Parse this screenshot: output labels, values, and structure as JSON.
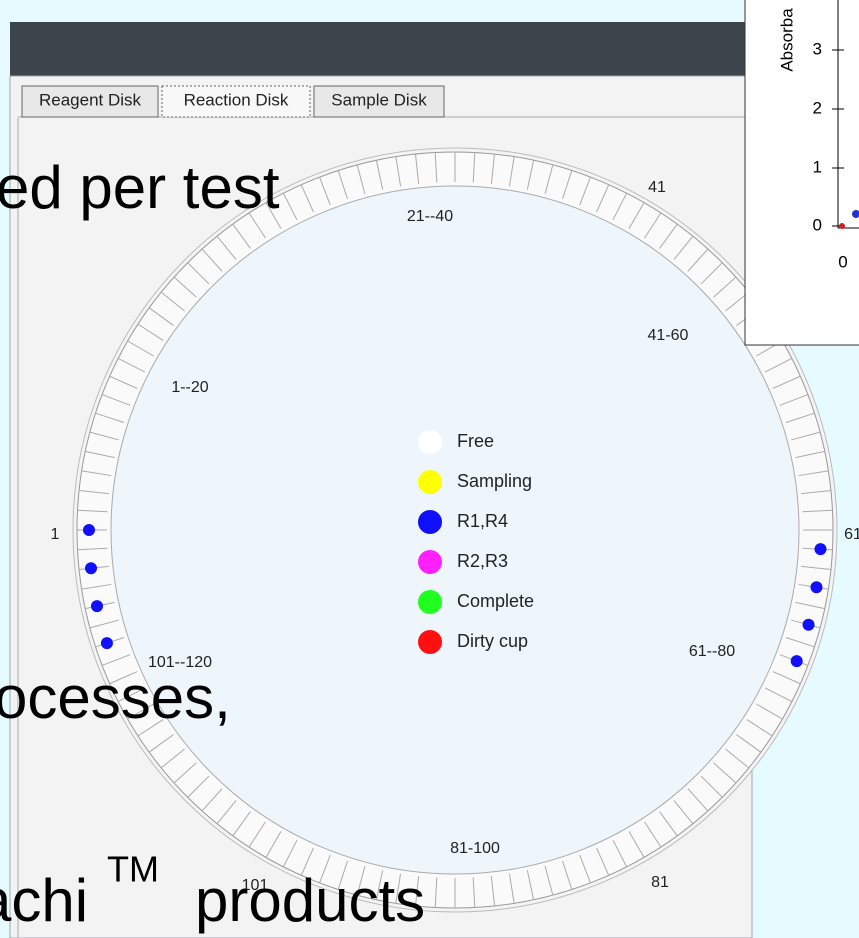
{
  "tabs": [
    "Reagent Disk",
    "Reaction Disk",
    "Sample Disk"
  ],
  "disk_labels": [
    "21--40",
    "41",
    "41-60",
    "1--20",
    "1",
    "61",
    "101--120",
    "61--80",
    "81-100",
    "81",
    "101"
  ],
  "legend": [
    {
      "name": "Free",
      "color": "#ffffff"
    },
    {
      "name": "Sampling",
      "color": "#ffff00"
    },
    {
      "name": "R1,R4",
      "color": "#1010ff"
    },
    {
      "name": "R2,R3",
      "color": "#ff20ff"
    },
    {
      "name": "Complete",
      "color": "#20ff20"
    },
    {
      "name": "Dirty cup",
      "color": "#ff1010"
    }
  ],
  "slide_text": [
    "ed per test",
    "ocesses,",
    "achi",
    "TM",
    "products"
  ],
  "inset_chart": {
    "y_axis_label": "Absorba",
    "yticks": [
      "3",
      "2",
      "1",
      "0"
    ],
    "xticks": [
      "0"
    ]
  }
}
